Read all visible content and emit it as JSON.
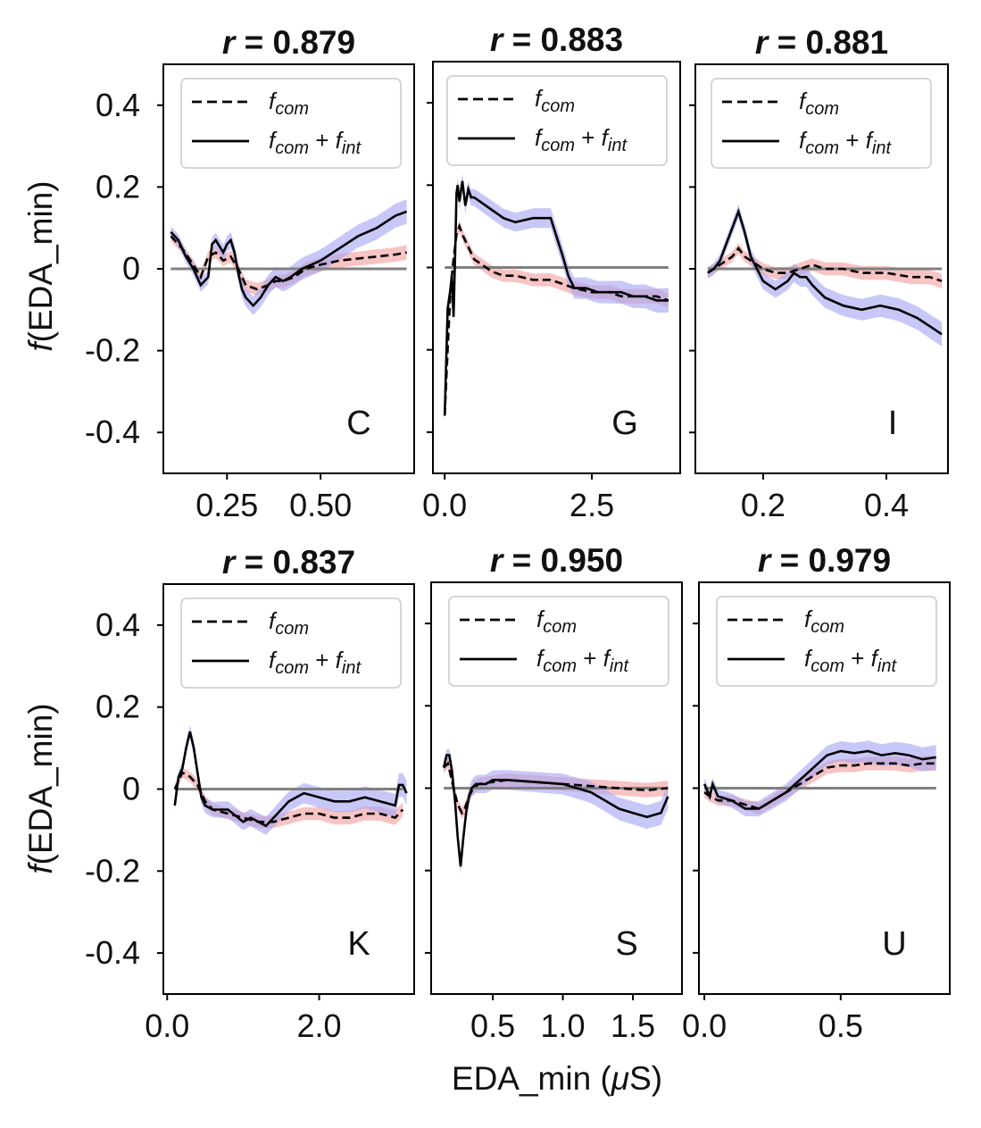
{
  "chart_data": {
    "type": "line",
    "figure": {
      "ylabel_prefix": "f",
      "ylabel_rest": "(EDA_min)",
      "xlabel_main": "EDA_min (",
      "xlabel_mu": "μ",
      "xlabel_end": "S)",
      "ylim": [
        -0.5,
        0.5
      ],
      "yticks": [
        0.4,
        0.2,
        0,
        -0.2,
        -0.4
      ],
      "ytick_labels": [
        "0.4",
        "0.2",
        "0",
        "-0.2",
        "-0.4"
      ],
      "legend": [
        {
          "series": "f_com",
          "style": "dashed",
          "base": "f",
          "sub1": "com"
        },
        {
          "series": "f_com + f_int",
          "style": "solid",
          "base": "f",
          "sub1": "com",
          "op": " + ",
          "base2": "f",
          "sub2": "int"
        }
      ],
      "colors": {
        "f_com_band": "#f4a3a3",
        "f_com_int_band": "#a3a3f4",
        "line": "#000000",
        "baseline": "#808080"
      }
    },
    "panels": [
      {
        "letter": "C",
        "r_label": "r",
        "r_value": " = 0.879",
        "xlim": [
          0.08,
          0.75
        ],
        "xticks": [
          0.25,
          0.5
        ],
        "xtick_labels": [
          "0.25",
          "0.50"
        ],
        "f_com": {
          "x": [
            0.1,
            0.13,
            0.16,
            0.18,
            0.2,
            0.22,
            0.24,
            0.26,
            0.28,
            0.3,
            0.33,
            0.36,
            0.38,
            0.4,
            0.43,
            0.46,
            0.5,
            0.55,
            0.6,
            0.65,
            0.7,
            0.73
          ],
          "y": [
            0.08,
            0.05,
            0.01,
            -0.02,
            0.03,
            0.04,
            0.02,
            0.03,
            0.0,
            -0.04,
            -0.05,
            -0.04,
            -0.03,
            -0.03,
            -0.02,
            0.0,
            0.01,
            0.02,
            0.025,
            0.03,
            0.035,
            0.04
          ]
        },
        "f_com_int": {
          "x": [
            0.1,
            0.12,
            0.14,
            0.16,
            0.18,
            0.2,
            0.21,
            0.22,
            0.24,
            0.25,
            0.26,
            0.27,
            0.28,
            0.29,
            0.3,
            0.31,
            0.32,
            0.34,
            0.36,
            0.38,
            0.4,
            0.42,
            0.45,
            0.5,
            0.55,
            0.6,
            0.65,
            0.7,
            0.73
          ],
          "y": [
            0.09,
            0.07,
            0.03,
            0.0,
            -0.04,
            -0.02,
            0.06,
            0.07,
            0.04,
            0.06,
            0.07,
            0.04,
            -0.01,
            -0.05,
            -0.07,
            -0.08,
            -0.09,
            -0.07,
            -0.04,
            -0.02,
            -0.03,
            -0.02,
            0.0,
            0.02,
            0.05,
            0.08,
            0.1,
            0.13,
            0.14
          ]
        }
      },
      {
        "letter": "G",
        "r_label": "r",
        "r_value": " = 0.883",
        "xlim": [
          -0.2,
          4.0
        ],
        "xticks": [
          0.0,
          2.5
        ],
        "xtick_labels": [
          "0.0",
          "2.5"
        ],
        "f_com": {
          "x": [
            0.0,
            0.05,
            0.1,
            0.15,
            0.2,
            0.25,
            0.3,
            0.4,
            0.5,
            0.6,
            0.8,
            1.0,
            1.2,
            1.5,
            1.8,
            2.0,
            2.2,
            2.5,
            2.8,
            3.0,
            3.3,
            3.6,
            3.8
          ],
          "y": [
            -0.36,
            -0.2,
            -0.05,
            0.02,
            0.08,
            0.1,
            0.08,
            0.05,
            0.02,
            0.01,
            -0.01,
            -0.02,
            -0.02,
            -0.03,
            -0.03,
            -0.04,
            -0.05,
            -0.06,
            -0.06,
            -0.07,
            -0.07,
            -0.07,
            -0.08
          ]
        },
        "f_com_int": {
          "x": [
            0.0,
            0.05,
            0.1,
            0.12,
            0.15,
            0.18,
            0.2,
            0.22,
            0.25,
            0.3,
            0.35,
            0.4,
            0.45,
            0.5,
            0.6,
            0.8,
            1.0,
            1.2,
            1.5,
            1.8,
            2.0,
            2.1,
            2.2,
            2.4,
            2.6,
            2.8,
            3.0,
            3.2,
            3.4,
            3.6,
            3.8
          ],
          "y": [
            -0.36,
            -0.1,
            -0.05,
            -0.02,
            -0.12,
            0.05,
            0.18,
            0.2,
            0.16,
            0.21,
            0.15,
            0.19,
            0.17,
            0.17,
            0.16,
            0.14,
            0.12,
            0.11,
            0.12,
            0.12,
            0.03,
            -0.02,
            -0.05,
            -0.05,
            -0.06,
            -0.06,
            -0.06,
            -0.07,
            -0.07,
            -0.08,
            -0.08
          ]
        }
      },
      {
        "letter": "I",
        "r_label": "r",
        "r_value": " = 0.881",
        "xlim": [
          0.09,
          0.5
        ],
        "xticks": [
          0.2,
          0.4
        ],
        "xtick_labels": [
          "0.2",
          "0.4"
        ],
        "f_com": {
          "x": [
            0.11,
            0.13,
            0.15,
            0.16,
            0.17,
            0.18,
            0.2,
            0.22,
            0.24,
            0.26,
            0.28,
            0.3,
            0.33,
            0.36,
            0.4,
            0.44,
            0.47,
            0.49
          ],
          "y": [
            -0.01,
            0.01,
            0.03,
            0.05,
            0.03,
            0.02,
            0.0,
            -0.01,
            -0.01,
            0.0,
            0.01,
            0.0,
            0.0,
            -0.01,
            -0.01,
            -0.02,
            -0.02,
            -0.03
          ]
        },
        "f_com_int": {
          "x": [
            0.11,
            0.12,
            0.13,
            0.14,
            0.15,
            0.16,
            0.17,
            0.18,
            0.19,
            0.2,
            0.22,
            0.24,
            0.25,
            0.26,
            0.27,
            0.28,
            0.3,
            0.33,
            0.36,
            0.39,
            0.42,
            0.45,
            0.47,
            0.49
          ],
          "y": [
            -0.01,
            0.0,
            0.02,
            0.06,
            0.1,
            0.14,
            0.09,
            0.03,
            0.0,
            -0.03,
            -0.05,
            -0.03,
            -0.01,
            -0.02,
            -0.02,
            -0.04,
            -0.07,
            -0.09,
            -0.1,
            -0.09,
            -0.1,
            -0.12,
            -0.14,
            -0.16
          ]
        }
      },
      {
        "letter": "K",
        "r_label": "r",
        "r_value": " = 0.837",
        "xlim": [
          -0.05,
          3.25
        ],
        "xticks": [
          0.0,
          2.0
        ],
        "xtick_labels": [
          "0.0",
          "2.0"
        ],
        "f_com": {
          "x": [
            0.1,
            0.2,
            0.3,
            0.4,
            0.5,
            0.6,
            0.8,
            1.0,
            1.2,
            1.4,
            1.6,
            1.8,
            2.0,
            2.2,
            2.4,
            2.6,
            2.8,
            3.0,
            3.1
          ],
          "y": [
            0.0,
            0.04,
            0.03,
            0.01,
            -0.03,
            -0.05,
            -0.06,
            -0.07,
            -0.08,
            -0.08,
            -0.07,
            -0.06,
            -0.06,
            -0.07,
            -0.07,
            -0.06,
            -0.06,
            -0.07,
            -0.05
          ]
        },
        "f_com_int": {
          "x": [
            0.1,
            0.15,
            0.2,
            0.25,
            0.3,
            0.35,
            0.4,
            0.45,
            0.5,
            0.6,
            0.8,
            1.0,
            1.1,
            1.2,
            1.3,
            1.4,
            1.5,
            1.6,
            1.8,
            2.0,
            2.2,
            2.4,
            2.6,
            2.8,
            3.0,
            3.05,
            3.1,
            3.15
          ],
          "y": [
            -0.04,
            0.03,
            0.05,
            0.1,
            0.14,
            0.1,
            0.04,
            -0.02,
            -0.04,
            -0.05,
            -0.05,
            -0.08,
            -0.07,
            -0.08,
            -0.09,
            -0.07,
            -0.05,
            -0.03,
            -0.01,
            -0.02,
            -0.03,
            -0.03,
            -0.02,
            -0.03,
            -0.04,
            0.01,
            0.01,
            -0.01
          ]
        }
      },
      {
        "letter": "S",
        "r_label": "r",
        "r_value": " = 0.950",
        "xlim": [
          0.06,
          1.85
        ],
        "xticks": [
          0.5,
          1.0,
          1.5
        ],
        "xtick_labels": [
          "0.5",
          "1.0",
          "1.5"
        ],
        "f_com": {
          "x": [
            0.15,
            0.18,
            0.2,
            0.22,
            0.25,
            0.28,
            0.3,
            0.33,
            0.36,
            0.4,
            0.5,
            0.6,
            0.8,
            1.0,
            1.2,
            1.4,
            1.6,
            1.75
          ],
          "y": [
            0.05,
            0.06,
            0.03,
            0.0,
            -0.04,
            -0.06,
            -0.05,
            -0.02,
            0.0,
            0.01,
            0.015,
            0.02,
            0.015,
            0.01,
            0.005,
            0.0,
            -0.005,
            0.0
          ]
        },
        "f_com_int": {
          "x": [
            0.15,
            0.17,
            0.19,
            0.21,
            0.23,
            0.25,
            0.27,
            0.29,
            0.31,
            0.33,
            0.35,
            0.38,
            0.4,
            0.45,
            0.5,
            0.6,
            0.8,
            1.0,
            1.2,
            1.3,
            1.4,
            1.5,
            1.6,
            1.7,
            1.75
          ],
          "y": [
            0.05,
            0.08,
            0.08,
            0.04,
            -0.03,
            -0.12,
            -0.19,
            -0.12,
            -0.06,
            -0.02,
            0.0,
            0.01,
            0.01,
            0.01,
            0.02,
            0.02,
            0.015,
            0.01,
            -0.01,
            -0.03,
            -0.05,
            -0.06,
            -0.07,
            -0.06,
            -0.02
          ]
        }
      },
      {
        "letter": "U",
        "r_label": "r",
        "r_value": " = 0.979",
        "xlim": [
          -0.02,
          0.9
        ],
        "xticks": [
          0.0,
          0.5
        ],
        "xtick_labels": [
          "0.0",
          "0.5"
        ],
        "f_com": {
          "x": [
            0.0,
            0.02,
            0.05,
            0.1,
            0.15,
            0.2,
            0.25,
            0.3,
            0.35,
            0.4,
            0.45,
            0.5,
            0.55,
            0.6,
            0.65,
            0.7,
            0.75,
            0.8,
            0.85
          ],
          "y": [
            -0.01,
            -0.02,
            -0.03,
            -0.03,
            -0.04,
            -0.05,
            -0.03,
            -0.01,
            0.01,
            0.03,
            0.05,
            0.055,
            0.055,
            0.06,
            0.06,
            0.06,
            0.055,
            0.06,
            0.06
          ]
        },
        "f_com_int": {
          "x": [
            0.0,
            0.02,
            0.03,
            0.05,
            0.1,
            0.15,
            0.2,
            0.25,
            0.3,
            0.35,
            0.4,
            0.45,
            0.5,
            0.55,
            0.6,
            0.65,
            0.7,
            0.75,
            0.8,
            0.85
          ],
          "y": [
            0.01,
            -0.02,
            0.01,
            -0.02,
            -0.03,
            -0.05,
            -0.05,
            -0.03,
            -0.01,
            0.02,
            0.05,
            0.08,
            0.09,
            0.085,
            0.09,
            0.08,
            0.085,
            0.08,
            0.07,
            0.075
          ]
        }
      }
    ]
  }
}
